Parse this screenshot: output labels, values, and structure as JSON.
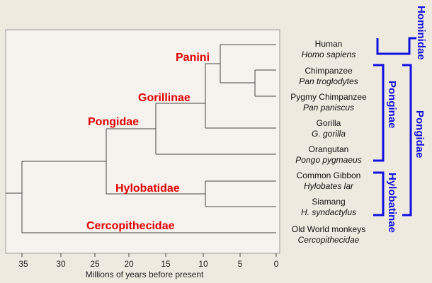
{
  "axis": {
    "title": "Millions of years before present",
    "ticks": [
      "35",
      "30",
      "25",
      "20",
      "15",
      "10",
      "5",
      "0"
    ]
  },
  "clades": {
    "panini": "Panini",
    "gorillinae": "Gorillinae",
    "pongidae": "Pongidae",
    "hylobatidae": "Hylobatidae",
    "cercopithecidae": "Cercopithecidae"
  },
  "taxa": [
    {
      "common": "Human",
      "scientific": "Homo sapiens"
    },
    {
      "common": "Chimpanzee",
      "scientific": "Pan troglodytes"
    },
    {
      "common": "Pygmy Chimpanzee",
      "scientific": "Pan paniscus"
    },
    {
      "common": "Gorilla",
      "scientific": "G. gorilla"
    },
    {
      "common": "Orangutan",
      "scientific": "Pongo pygmaeus"
    },
    {
      "common": "Common Gibbon",
      "scientific": "Hylobates lar"
    },
    {
      "common": "Siamang",
      "scientific": "H. syndactylus"
    },
    {
      "common": "Old World monkeys",
      "scientific": "Cercopithecidae"
    }
  ],
  "groups": {
    "hominidae": "Hominidae",
    "ponginae": "Ponginae",
    "hylobatinae": "Hylobatinae",
    "pongidae": "Pongidae"
  },
  "colors": {
    "clade_label": "#e00000",
    "bracket": "#1010e0",
    "background": "#efeae0",
    "plot_area": "#f6f3ee"
  }
}
